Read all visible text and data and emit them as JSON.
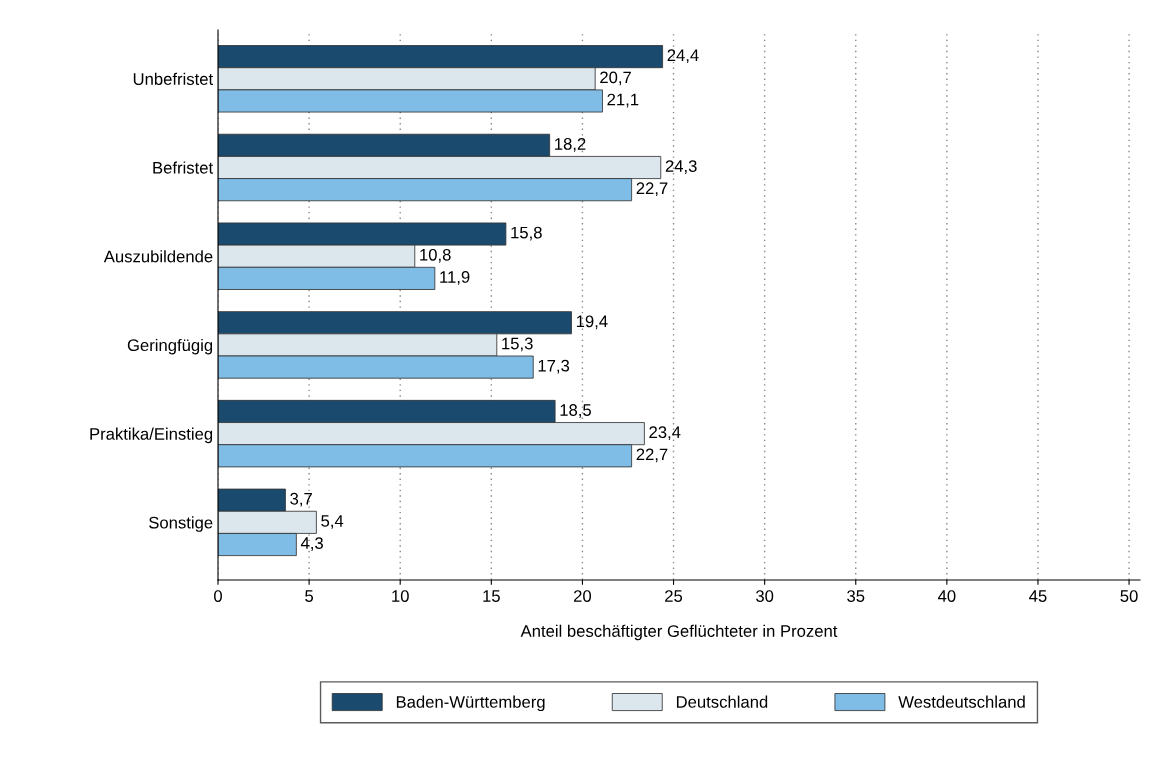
{
  "chart_data": {
    "type": "bar",
    "orientation": "horizontal",
    "xlabel": "Anteil beschäftigter Geflüchteter in Prozent",
    "categories": [
      "Unbefristet",
      "Befristet",
      "Auszubildende",
      "Geringfügig",
      "Praktika/Einstieg",
      "Sonstige"
    ],
    "series": [
      {
        "name": "Baden-Württemberg",
        "color": "#1b4a6f",
        "values": [
          24.4,
          18.2,
          15.8,
          19.4,
          18.5,
          3.7
        ],
        "value_labels": [
          "24,4",
          "18,2",
          "15,8",
          "19,4",
          "18,5",
          "3,7"
        ]
      },
      {
        "name": "Deutschland",
        "color": "#dce6ed",
        "values": [
          20.7,
          24.3,
          10.8,
          15.3,
          23.4,
          5.4
        ],
        "value_labels": [
          "20,7",
          "24,3",
          "10,8",
          "15,3",
          "23,4",
          "5,4"
        ]
      },
      {
        "name": "Westdeutschland",
        "color": "#80bde6",
        "values": [
          21.1,
          22.7,
          11.9,
          17.3,
          22.7,
          4.3
        ],
        "value_labels": [
          "21,1",
          "22,7",
          "11,9",
          "17,3",
          "22,7",
          "4,3"
        ]
      }
    ],
    "xlim": [
      0,
      50.6
    ],
    "xticks": [
      0,
      5,
      10,
      15,
      20,
      25,
      30,
      35,
      40,
      45,
      50
    ],
    "grid": "x",
    "legend": "bottom"
  }
}
